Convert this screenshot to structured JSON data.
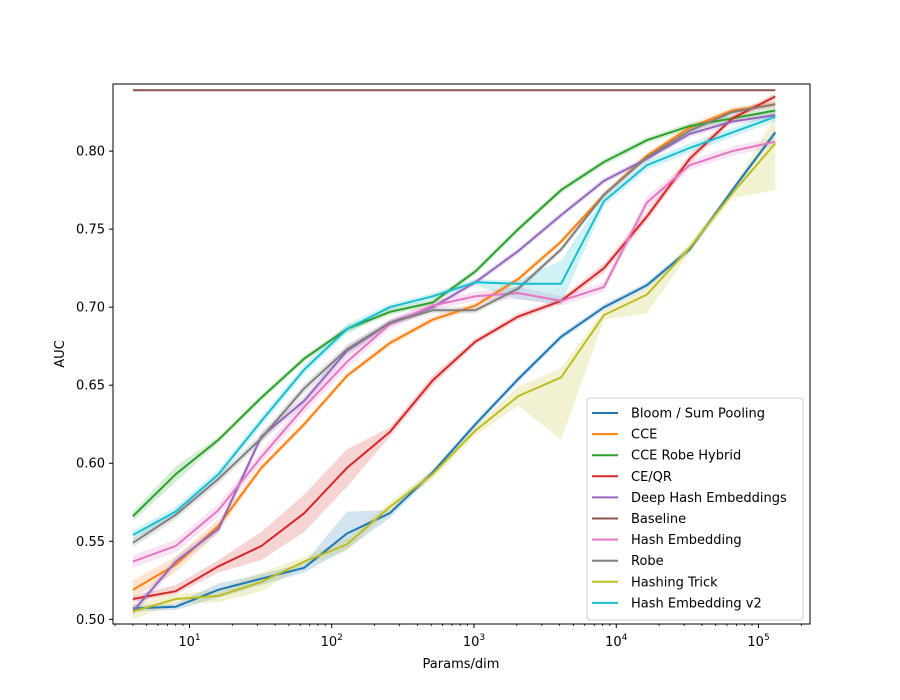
{
  "chart_data": {
    "type": "line",
    "xscale": "log",
    "xlabel": "Params/dim",
    "ylabel": "AUC",
    "xlim": [
      2.9,
      230000
    ],
    "ylim": [
      0.497,
      0.843
    ],
    "xticks": [
      {
        "value": 10,
        "base": "10",
        "exp": "1"
      },
      {
        "value": 100,
        "base": "10",
        "exp": "2"
      },
      {
        "value": 1000,
        "base": "10",
        "exp": "3"
      },
      {
        "value": 10000,
        "base": "10",
        "exp": "4"
      },
      {
        "value": 100000,
        "base": "10",
        "exp": "5"
      }
    ],
    "yticks": [
      {
        "value": 0.5,
        "label": "0.50"
      },
      {
        "value": 0.55,
        "label": "0.55"
      },
      {
        "value": 0.6,
        "label": "0.60"
      },
      {
        "value": 0.65,
        "label": "0.65"
      },
      {
        "value": 0.7,
        "label": "0.70"
      },
      {
        "value": 0.75,
        "label": "0.75"
      },
      {
        "value": 0.8,
        "label": "0.80"
      }
    ],
    "legend_position": "lower-right",
    "x": [
      4,
      8,
      16,
      32,
      64,
      128,
      256,
      512,
      1024,
      2048,
      4096,
      8192,
      16384,
      32768,
      65536,
      131072
    ],
    "series": [
      {
        "name": "Bloom / Sum Pooling",
        "color": "#1f77b4",
        "values": [
          0.507,
          0.508,
          0.519,
          0.526,
          0.533,
          0.555,
          0.568,
          0.594,
          0.625,
          0.654,
          0.681,
          0.7,
          0.714,
          0.737,
          0.775,
          0.812
        ],
        "lower": [
          0.505,
          0.506,
          0.514,
          0.522,
          0.53,
          0.545,
          0.565,
          0.592,
          0.623,
          0.652,
          0.679,
          0.698,
          0.712,
          0.735,
          0.773,
          0.81
        ],
        "upper": [
          0.509,
          0.51,
          0.523,
          0.529,
          0.536,
          0.569,
          0.57,
          0.596,
          0.627,
          0.656,
          0.683,
          0.702,
          0.716,
          0.739,
          0.777,
          0.814
        ]
      },
      {
        "name": "CCE",
        "color": "#ff7f0e",
        "values": [
          0.519,
          0.535,
          0.56,
          0.597,
          0.625,
          0.656,
          0.677,
          0.692,
          0.701,
          0.718,
          0.742,
          0.772,
          0.797,
          0.815,
          0.826,
          0.83
        ],
        "lower": [
          0.514,
          0.53,
          0.556,
          0.595,
          0.623,
          0.654,
          0.675,
          0.69,
          0.699,
          0.716,
          0.74,
          0.77,
          0.795,
          0.813,
          0.824,
          0.828
        ],
        "upper": [
          0.525,
          0.54,
          0.564,
          0.599,
          0.627,
          0.658,
          0.679,
          0.694,
          0.703,
          0.72,
          0.744,
          0.774,
          0.799,
          0.817,
          0.828,
          0.832
        ]
      },
      {
        "name": "CCE Robe Hybrid",
        "color": "#2ca02c",
        "values": [
          0.566,
          0.593,
          0.615,
          0.642,
          0.667,
          0.686,
          0.697,
          0.703,
          0.723,
          0.75,
          0.775,
          0.793,
          0.807,
          0.816,
          0.821,
          0.826
        ],
        "lower": [
          0.563,
          0.588,
          0.613,
          0.64,
          0.665,
          0.684,
          0.695,
          0.701,
          0.721,
          0.748,
          0.773,
          0.791,
          0.805,
          0.814,
          0.819,
          0.824
        ],
        "upper": [
          0.569,
          0.598,
          0.617,
          0.644,
          0.669,
          0.688,
          0.699,
          0.705,
          0.725,
          0.752,
          0.777,
          0.795,
          0.809,
          0.818,
          0.823,
          0.828
        ]
      },
      {
        "name": "CE/QR",
        "color": "#d62728",
        "values": [
          0.513,
          0.518,
          0.534,
          0.547,
          0.568,
          0.597,
          0.62,
          0.653,
          0.678,
          0.694,
          0.704,
          0.725,
          0.758,
          0.795,
          0.821,
          0.835
        ],
        "lower": [
          0.511,
          0.516,
          0.53,
          0.538,
          0.556,
          0.585,
          0.617,
          0.65,
          0.676,
          0.692,
          0.702,
          0.722,
          0.755,
          0.792,
          0.819,
          0.833
        ],
        "upper": [
          0.515,
          0.522,
          0.538,
          0.556,
          0.58,
          0.609,
          0.623,
          0.656,
          0.68,
          0.696,
          0.706,
          0.728,
          0.761,
          0.798,
          0.823,
          0.837
        ]
      },
      {
        "name": "Deep Hash Embeddings",
        "color": "#9467bd",
        "values": [
          0.505,
          0.537,
          0.558,
          0.617,
          0.64,
          0.672,
          0.69,
          0.7,
          0.716,
          0.736,
          0.759,
          0.781,
          0.795,
          0.811,
          0.819,
          0.823
        ],
        "lower": [
          0.502,
          0.534,
          0.555,
          0.614,
          0.637,
          0.669,
          0.688,
          0.698,
          0.714,
          0.734,
          0.757,
          0.779,
          0.793,
          0.809,
          0.817,
          0.821
        ],
        "upper": [
          0.508,
          0.54,
          0.561,
          0.62,
          0.643,
          0.675,
          0.692,
          0.702,
          0.718,
          0.738,
          0.761,
          0.783,
          0.797,
          0.813,
          0.821,
          0.825
        ]
      },
      {
        "name": "Baseline",
        "color": "#8c564b",
        "values": [
          0.839,
          0.839,
          0.839,
          0.839,
          0.839,
          0.839,
          0.839,
          0.839,
          0.839,
          0.839,
          0.839,
          0.839,
          0.839,
          0.839,
          0.839,
          0.839
        ],
        "lower": null,
        "upper": null
      },
      {
        "name": "Hash Embedding",
        "color": "#e377c2",
        "values": [
          0.537,
          0.547,
          0.57,
          0.604,
          0.636,
          0.665,
          0.689,
          0.701,
          0.707,
          0.709,
          0.704,
          0.713,
          0.767,
          0.791,
          0.8,
          0.806
        ],
        "lower": [
          0.533,
          0.543,
          0.566,
          0.6,
          0.632,
          0.661,
          0.686,
          0.698,
          0.704,
          0.705,
          0.701,
          0.71,
          0.763,
          0.788,
          0.797,
          0.803
        ],
        "upper": [
          0.541,
          0.551,
          0.574,
          0.608,
          0.64,
          0.669,
          0.692,
          0.704,
          0.71,
          0.713,
          0.707,
          0.716,
          0.771,
          0.794,
          0.803,
          0.809
        ]
      },
      {
        "name": "Robe",
        "color": "#7f7f7f",
        "values": [
          0.549,
          0.567,
          0.59,
          0.616,
          0.648,
          0.673,
          0.69,
          0.698,
          0.698,
          0.712,
          0.737,
          0.772,
          0.796,
          0.813,
          0.825,
          0.83
        ],
        "lower": [
          0.546,
          0.564,
          0.587,
          0.613,
          0.645,
          0.67,
          0.688,
          0.696,
          0.696,
          0.71,
          0.735,
          0.77,
          0.794,
          0.811,
          0.823,
          0.828
        ],
        "upper": [
          0.552,
          0.57,
          0.593,
          0.619,
          0.651,
          0.676,
          0.692,
          0.7,
          0.7,
          0.714,
          0.739,
          0.774,
          0.798,
          0.815,
          0.827,
          0.832
        ]
      },
      {
        "name": "Hashing Trick",
        "color": "#bcbd22",
        "values": [
          0.505,
          0.513,
          0.515,
          0.524,
          0.537,
          0.548,
          0.572,
          0.593,
          0.621,
          0.643,
          0.655,
          0.695,
          0.708,
          0.738,
          0.773,
          0.805
        ],
        "lower": [
          0.5,
          0.51,
          0.511,
          0.518,
          0.534,
          0.544,
          0.569,
          0.59,
          0.618,
          0.637,
          0.615,
          0.692,
          0.696,
          0.735,
          0.77,
          0.775
        ],
        "upper": [
          0.51,
          0.516,
          0.519,
          0.53,
          0.54,
          0.552,
          0.575,
          0.596,
          0.624,
          0.649,
          0.661,
          0.698,
          0.712,
          0.741,
          0.776,
          0.822
        ]
      },
      {
        "name": "Hash Embedding v2",
        "color": "#17becf",
        "values": [
          0.554,
          0.569,
          0.593,
          0.627,
          0.66,
          0.686,
          0.7,
          0.707,
          0.716,
          0.715,
          0.715,
          0.768,
          0.791,
          0.802,
          0.812,
          0.822
        ],
        "lower": [
          0.551,
          0.566,
          0.59,
          0.624,
          0.657,
          0.683,
          0.698,
          0.705,
          0.714,
          0.705,
          0.702,
          0.765,
          0.788,
          0.799,
          0.809,
          0.819
        ],
        "upper": [
          0.557,
          0.572,
          0.596,
          0.63,
          0.663,
          0.689,
          0.702,
          0.709,
          0.718,
          0.717,
          0.73,
          0.771,
          0.794,
          0.805,
          0.815,
          0.825
        ]
      }
    ]
  }
}
